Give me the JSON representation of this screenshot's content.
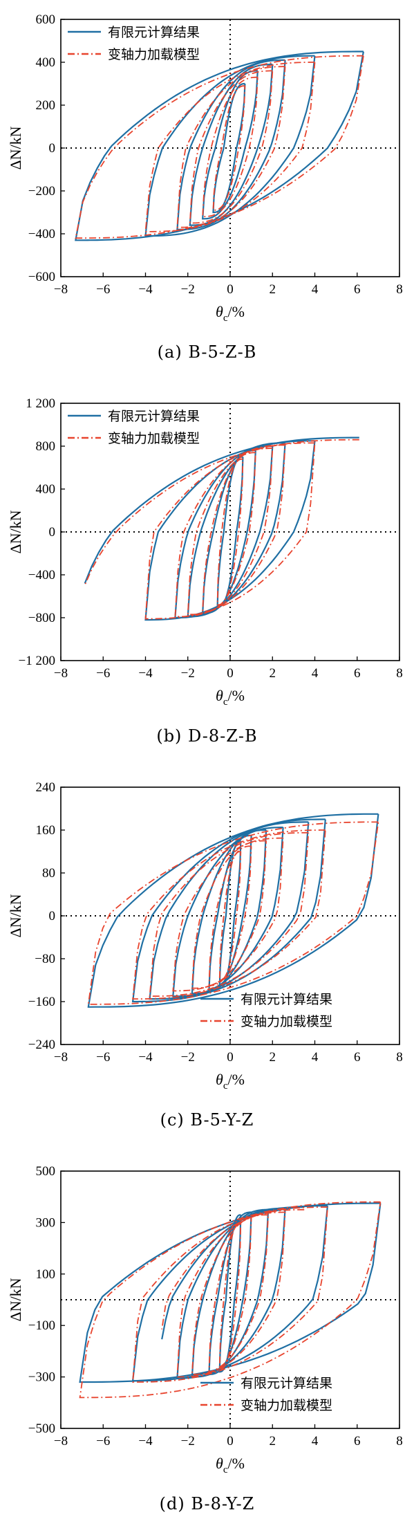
{
  "colors": {
    "fe": "#1f6fa3",
    "model": "#e8442e",
    "axis": "#000000"
  },
  "chart_data": [
    {
      "type": "line",
      "panel_id": "a",
      "caption": "(a) B-5-Z-B",
      "xlabel_main": "θ",
      "xlabel_sub": "c",
      "xlabel_unit": "/%",
      "ylabel": "ΔN/kN",
      "xlim": [
        -8,
        8
      ],
      "ylim": [
        -600,
        600
      ],
      "xticks": [
        "−8",
        "−6",
        "−4",
        "−2",
        "0",
        "2",
        "4",
        "6",
        "8"
      ],
      "yticks": [
        "600",
        "400",
        "200",
        "0",
        "−200",
        "−400",
        "−600"
      ],
      "ytick_values": [
        600,
        400,
        200,
        0,
        -200,
        -400,
        -600
      ],
      "legend_position": "top-left",
      "series": [
        {
          "name": "有限元计算结果",
          "style": "solid",
          "amplitudes": [
            0.7,
            1.3,
            2.0,
            2.6,
            4.0,
            6.3
          ],
          "neg_amplitudes": [
            0.8,
            1.3,
            1.9,
            2.5,
            4.0,
            7.3
          ],
          "peaks_pos": [
            300,
            360,
            390,
            410,
            430,
            450
          ],
          "peaks_neg": [
            -300,
            -330,
            -360,
            -380,
            -410,
            -430
          ],
          "x_intercepts_neg": [
            -0.3,
            -0.7,
            -1.3,
            -1.9,
            -3.2,
            -5.7
          ],
          "x_intercepts_pos": [
            0.3,
            0.7,
            1.3,
            1.9,
            3.0,
            4.6
          ],
          "y_at_zero": [
            250,
            -250
          ]
        },
        {
          "name": "变轴力加载模型",
          "style": "dashdot",
          "amplitudes": [
            0.7,
            1.3,
            2.0,
            2.6,
            4.0,
            6.3
          ],
          "neg_amplitudes": [
            0.8,
            1.3,
            1.9,
            2.5,
            4.0,
            7.3
          ],
          "peaks_pos": [
            290,
            330,
            360,
            380,
            400,
            430
          ],
          "peaks_neg": [
            -290,
            -320,
            -350,
            -370,
            -390,
            -420
          ],
          "x_intercepts_neg": [
            -0.4,
            -0.9,
            -1.5,
            -2.1,
            -3.4,
            -5.5
          ],
          "x_intercepts_pos": [
            0.4,
            0.9,
            1.5,
            2.1,
            3.4,
            5.0
          ]
        }
      ]
    },
    {
      "type": "line",
      "panel_id": "b",
      "caption": "(b) D-8-Z-B",
      "xlabel_main": "θ",
      "xlabel_sub": "c",
      "xlabel_unit": "/%",
      "ylabel": "ΔN/kN",
      "xlim": [
        -8,
        8
      ],
      "ylim": [
        -1200,
        1200
      ],
      "xticks": [
        "−8",
        "−6",
        "−4",
        "−2",
        "0",
        "2",
        "4",
        "6",
        "8"
      ],
      "yticks": [
        "1 200",
        "800",
        "400",
        "0",
        "−400",
        "−800",
        "−1 200"
      ],
      "ytick_values": [
        1200,
        800,
        400,
        0,
        -400,
        -800,
        -1200
      ],
      "legend_position": "top-left",
      "series": [
        {
          "name": "有限元计算结果",
          "style": "solid",
          "amplitudes": [
            0.6,
            1.2,
            2.0,
            2.6,
            4.0,
            6.1
          ],
          "neg_amplitudes": [
            0.6,
            1.3,
            2.0,
            2.6,
            4.0,
            7.2
          ],
          "peaks_pos": [
            700,
            760,
            800,
            830,
            850,
            880
          ],
          "peaks_neg": [
            -700,
            -760,
            -790,
            -800,
            -820,
            -830
          ],
          "x_intercepts_neg": [
            -0.3,
            -0.8,
            -1.4,
            -2.0,
            -3.4,
            -5.6
          ],
          "x_intercepts_pos": [
            0.3,
            0.8,
            1.4,
            2.0,
            3.0,
            4.5
          ],
          "y_at_zero": [
            480,
            -480
          ]
        },
        {
          "name": "变轴力加载模型",
          "style": "dashdot",
          "amplitudes": [
            0.6,
            1.2,
            2.0,
            2.6,
            4.0,
            6.1
          ],
          "neg_amplitudes": [
            0.6,
            1.3,
            2.0,
            2.6,
            4.0,
            7.2
          ],
          "peaks_pos": [
            680,
            740,
            780,
            810,
            830,
            860
          ],
          "peaks_neg": [
            -680,
            -740,
            -770,
            -790,
            -810,
            -820
          ],
          "x_intercepts_neg": [
            -0.4,
            -0.9,
            -1.6,
            -2.2,
            -3.6,
            -5.4
          ],
          "x_intercepts_pos": [
            0.4,
            0.9,
            1.6,
            2.2,
            3.6,
            5.0
          ]
        }
      ]
    },
    {
      "type": "line",
      "panel_id": "c",
      "caption": "(c) B-5-Y-Z",
      "xlabel_main": "θ",
      "xlabel_sub": "c",
      "xlabel_unit": "/%",
      "ylabel": "ΔN/kN",
      "xlim": [
        -8,
        8
      ],
      "ylim": [
        -240,
        240
      ],
      "xticks": [
        "−8",
        "−6",
        "−4",
        "−2",
        "0",
        "2",
        "4",
        "6",
        "8"
      ],
      "yticks": [
        "240",
        "160",
        "80",
        "0",
        "−80",
        "−160",
        "−240"
      ],
      "ytick_values": [
        240,
        160,
        80,
        0,
        -80,
        -160,
        -240
      ],
      "legend_position": "bottom-right",
      "series": [
        {
          "name": "有限元计算结果",
          "style": "solid",
          "amplitudes": [
            0.5,
            1.0,
            1.7,
            2.5,
            3.7,
            4.5,
            7.0
          ],
          "neg_amplitudes": [
            0.5,
            1.0,
            1.8,
            2.7,
            3.8,
            4.6,
            6.7
          ],
          "peaks_pos": [
            140,
            150,
            160,
            165,
            175,
            180,
            190
          ],
          "peaks_neg": [
            -135,
            -140,
            -145,
            -150,
            -155,
            -160,
            -170
          ],
          "x_intercepts_neg": [
            -0.2,
            -0.6,
            -1.3,
            -2.0,
            -3.0,
            -3.7,
            -5.3
          ],
          "x_intercepts_pos": [
            0.2,
            0.6,
            1.3,
            2.0,
            3.1,
            3.9,
            6.2
          ],
          "y_at_zero": [
            70,
            -70
          ]
        },
        {
          "name": "变轴力加载模型",
          "style": "dashdot",
          "amplitudes": [
            0.5,
            1.0,
            1.7,
            2.5,
            3.7,
            4.5,
            7.0
          ],
          "neg_amplitudes": [
            0.5,
            1.0,
            1.8,
            2.7,
            3.8,
            4.6,
            6.7
          ],
          "peaks_pos": [
            120,
            130,
            140,
            145,
            155,
            160,
            175
          ],
          "peaks_neg": [
            -120,
            -130,
            -135,
            -140,
            -150,
            -155,
            -165
          ],
          "x_intercepts_neg": [
            -0.3,
            -0.7,
            -1.4,
            -2.2,
            -3.3,
            -4.0,
            -5.8
          ],
          "x_intercepts_pos": [
            0.3,
            0.7,
            1.4,
            2.2,
            3.3,
            4.1,
            6.0
          ]
        }
      ]
    },
    {
      "type": "line",
      "panel_id": "d",
      "caption": "(d) B-8-Y-Z",
      "xlabel_main": "θ",
      "xlabel_sub": "c",
      "xlabel_unit": "/%",
      "ylabel": "ΔN/kN",
      "xlim": [
        -8,
        8
      ],
      "ylim": [
        -500,
        500
      ],
      "xticks": [
        "−8",
        "−6",
        "−4",
        "−2",
        "0",
        "2",
        "4",
        "6",
        "8"
      ],
      "yticks": [
        "500",
        "300",
        "100",
        "−100",
        "−300",
        "−500"
      ],
      "ytick_values": [
        500,
        300,
        100,
        -100,
        -300,
        -500
      ],
      "legend_position": "bottom-right",
      "series": [
        {
          "name": "有限元计算结果",
          "style": "solid",
          "amplitudes": [
            0.5,
            1.0,
            1.8,
            2.6,
            3.5,
            4.6,
            7.1
          ],
          "neg_amplitudes": [
            0.5,
            1.0,
            1.8,
            2.5,
            3.4,
            4.6,
            7.1
          ],
          "peaks_pos": [
            330,
            340,
            350,
            355,
            360,
            365,
            375
          ],
          "peaks_neg": [
            -280,
            -290,
            -300,
            -305,
            -310,
            -315,
            -320
          ],
          "x_intercepts_neg": [
            -0.2,
            -0.6,
            -1.3,
            -2.0,
            -2.8,
            -3.9,
            -6.2
          ],
          "x_intercepts_pos": [
            0.2,
            0.6,
            1.3,
            2.0,
            2.8,
            3.9,
            6.3
          ],
          "y_at_zero": [
            230,
            -230
          ]
        },
        {
          "name": "变轴力加载模型",
          "style": "dashdot",
          "amplitudes": [
            0.5,
            1.0,
            1.8,
            2.6,
            3.5,
            4.6,
            7.1
          ],
          "neg_amplitudes": [
            0.5,
            1.0,
            1.8,
            2.5,
            3.4,
            4.6,
            7.1
          ],
          "peaks_pos": [
            300,
            320,
            330,
            340,
            350,
            360,
            380
          ],
          "peaks_neg": [
            -270,
            -280,
            -290,
            -300,
            -310,
            -320,
            -380
          ],
          "x_intercepts_neg": [
            -0.3,
            -0.7,
            -1.4,
            -2.2,
            -3.0,
            -4.2,
            -6.0
          ],
          "x_intercepts_pos": [
            0.3,
            0.7,
            1.4,
            2.2,
            3.0,
            4.2,
            6.0
          ]
        }
      ]
    }
  ]
}
